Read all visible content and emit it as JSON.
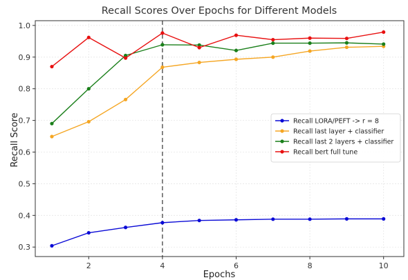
{
  "chart_data": {
    "type": "line",
    "title": "Recall Scores Over Epochs for Different Models",
    "xlabel": "Epochs",
    "ylabel": "Recall Score",
    "x": [
      1,
      2,
      3,
      4,
      5,
      6,
      7,
      8,
      9,
      10
    ],
    "x_ticks": [
      2,
      4,
      6,
      8,
      10
    ],
    "y_ticks": [
      0.3,
      0.4,
      0.5,
      0.6,
      0.7,
      0.8,
      0.9,
      1.0
    ],
    "y_tick_labels": [
      "0.3",
      "0.4",
      "0.5",
      "0.6",
      "0.7",
      "0.8",
      "0.9",
      "1.0"
    ],
    "xlim": [
      0.55,
      10.55
    ],
    "ylim": [
      0.27,
      1.015
    ],
    "grid": true,
    "legend_position": "center-right",
    "vline": {
      "x": 4,
      "color": "#666666",
      "style": "dashed"
    },
    "series": [
      {
        "name": "Recall LORA/PEFT -> r = 8",
        "color": "#0a0ad6",
        "values": [
          0.304,
          0.345,
          0.362,
          0.377,
          0.384,
          0.386,
          0.388,
          0.388,
          0.389,
          0.389
        ]
      },
      {
        "name": "Recall last layer + classifier",
        "color": "#f5a623",
        "values": [
          0.649,
          0.696,
          0.766,
          0.868,
          0.883,
          0.893,
          0.9,
          0.919,
          0.931,
          0.934
        ]
      },
      {
        "name": "Recall last 2 layers + classifier",
        "color": "#1a7f1a",
        "values": [
          0.69,
          0.8,
          0.905,
          0.939,
          0.938,
          0.921,
          0.944,
          0.944,
          0.945,
          0.941
        ]
      },
      {
        "name": "Recall bert full tune",
        "color": "#e81010",
        "values": [
          0.87,
          0.962,
          0.897,
          0.976,
          0.93,
          0.969,
          0.955,
          0.96,
          0.959,
          0.979
        ]
      }
    ]
  }
}
